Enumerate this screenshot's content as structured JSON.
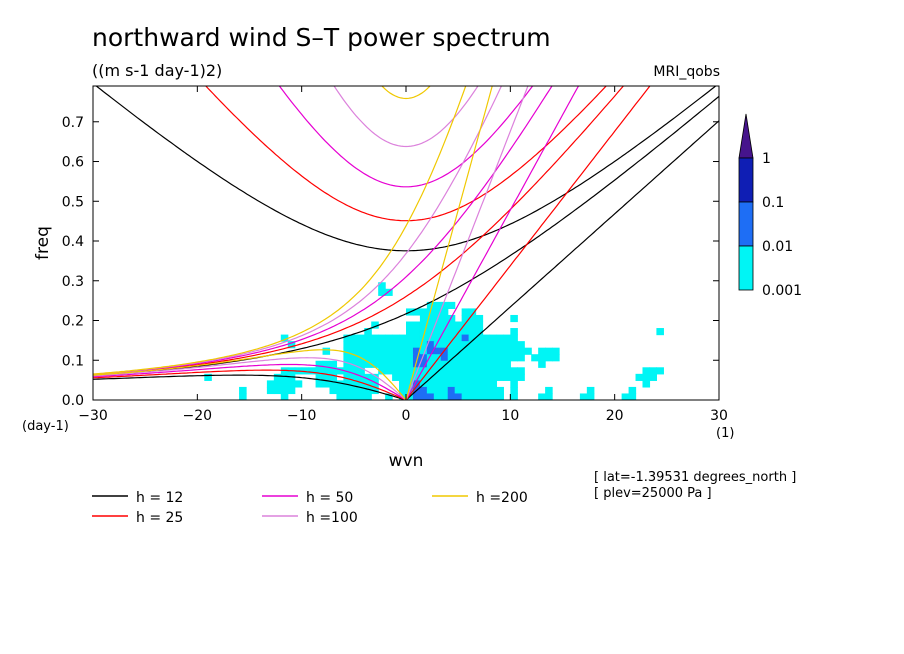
{
  "chart_data": {
    "type": "heatmap",
    "title": "northward wind S–T power spectrum",
    "subtitle": "((m s-1 day-1)2)",
    "model_label": "MRI_qobs",
    "xlabel": "wvn",
    "ylabel": "freq",
    "x_unit": "(1)",
    "y_unit": "(day-1)",
    "xlim": [
      -30,
      30
    ],
    "ylim": [
      0,
      0.79
    ],
    "x_ticks": [
      -30,
      -20,
      -10,
      0,
      10,
      20,
      30
    ],
    "x_tick_labels": [
      "−30",
      "−20",
      "−10",
      "0",
      "10",
      "20",
      "30"
    ],
    "y_ticks": [
      0.0,
      0.1,
      0.2,
      0.3,
      0.4,
      0.5,
      0.6,
      0.7
    ],
    "y_tick_labels": [
      "0.0",
      "0.1",
      "0.2",
      "0.3",
      "0.4",
      "0.5",
      "0.6",
      "0.7"
    ],
    "colorbar": {
      "levels": [
        "0.001",
        "0.01",
        "0.1",
        "1"
      ],
      "colors": [
        "#00f5f5",
        "#1e6ef5",
        "#0f1eb4",
        "#46148c"
      ]
    },
    "contour_regions": [
      {
        "level": "0.001",
        "color": "#00f5f5",
        "description": "background power 0.001–0.01 mainly at freq < 0.45"
      },
      {
        "level": "0.01",
        "color": "#1e6ef5",
        "center_wvn": 3,
        "center_freq": 0.12
      },
      {
        "level": "0.1",
        "color": "#0f1eb4",
        "center_wvn": 3,
        "center_freq": 0.05
      }
    ],
    "dispersion_curves": [
      {
        "name": "h = 12",
        "h": 12,
        "color": "#000000"
      },
      {
        "name": "h = 25",
        "h": 25,
        "color": "#ff0000"
      },
      {
        "name": "h = 50",
        "h": 50,
        "color": "#e600d2"
      },
      {
        "name": "h =100",
        "h": 100,
        "color": "#dc82dc"
      },
      {
        "name": "h =200",
        "h": 200,
        "color": "#f0c800"
      }
    ],
    "legend": [
      {
        "label": "h = 12",
        "color": "#000000"
      },
      {
        "label": "h = 25",
        "color": "#ff0000"
      },
      {
        "label": "h = 50",
        "color": "#e600d2"
      },
      {
        "label": "h =100",
        "color": "#dc82dc"
      },
      {
        "label": "h =200",
        "color": "#f0c800"
      }
    ],
    "annotations": [
      "[ lat=-1.39531 degrees_north ]",
      "[ plev=25000 Pa ]"
    ]
  }
}
